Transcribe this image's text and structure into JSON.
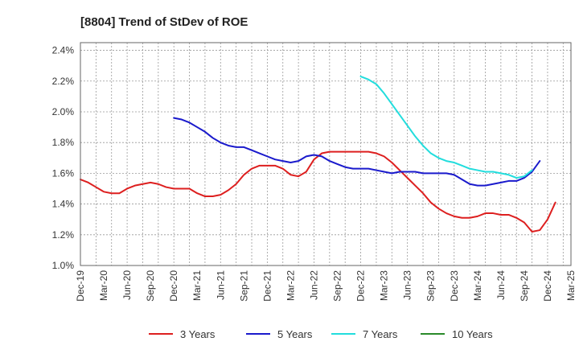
{
  "chart_data": {
    "type": "line",
    "title": "[8804]  Trend of StDev of ROE",
    "xlabel": "",
    "ylabel": "",
    "x_ticks": [
      "Dec-19",
      "Mar-20",
      "Jun-20",
      "Sep-20",
      "Dec-20",
      "Mar-21",
      "Jun-21",
      "Sep-21",
      "Dec-21",
      "Mar-22",
      "Jun-22",
      "Sep-22",
      "Dec-22",
      "Mar-23",
      "Jun-23",
      "Sep-23",
      "Dec-23",
      "Mar-24",
      "Jun-24",
      "Sep-24",
      "Dec-24",
      "Mar-25"
    ],
    "y_ticks": [
      "1.0%",
      "1.2%",
      "1.4%",
      "1.6%",
      "1.8%",
      "2.0%",
      "2.2%",
      "2.4%"
    ],
    "ylim": [
      1.0,
      2.45
    ],
    "grid": true,
    "legend_position": "bottom",
    "series": [
      {
        "name": "3 Years",
        "color": "#dd1f1f",
        "start": "Dec-19",
        "values": [
          1.56,
          1.54,
          1.51,
          1.48,
          1.47,
          1.47,
          1.5,
          1.52,
          1.53,
          1.54,
          1.53,
          1.51,
          1.5,
          1.5,
          1.5,
          1.47,
          1.45,
          1.45,
          1.46,
          1.49,
          1.53,
          1.59,
          1.63,
          1.65,
          1.65,
          1.65,
          1.63,
          1.59,
          1.58,
          1.61,
          1.69,
          1.73,
          1.74,
          1.74,
          1.74,
          1.74,
          1.74,
          1.74,
          1.73,
          1.71,
          1.67,
          1.62,
          1.57,
          1.52,
          1.47,
          1.41,
          1.37,
          1.34,
          1.32,
          1.31,
          1.31,
          1.32,
          1.34,
          1.34,
          1.33,
          1.33,
          1.31,
          1.28,
          1.22,
          1.23,
          1.3,
          1.41
        ]
      },
      {
        "name": "5 Years",
        "color": "#1a1acc",
        "start": "Dec-20",
        "values": [
          1.96,
          1.95,
          1.93,
          1.9,
          1.87,
          1.83,
          1.8,
          1.78,
          1.77,
          1.77,
          1.75,
          1.73,
          1.71,
          1.69,
          1.68,
          1.67,
          1.68,
          1.71,
          1.72,
          1.71,
          1.68,
          1.66,
          1.64,
          1.63,
          1.63,
          1.63,
          1.62,
          1.61,
          1.6,
          1.61,
          1.61,
          1.61,
          1.6,
          1.6,
          1.6,
          1.6,
          1.59,
          1.56,
          1.53,
          1.52,
          1.52,
          1.53,
          1.54,
          1.55,
          1.55,
          1.57,
          1.61,
          1.68
        ]
      },
      {
        "name": "7 Years",
        "color": "#22dddd",
        "start": "Dec-22",
        "values": [
          2.23,
          2.21,
          2.18,
          2.12,
          2.05,
          1.98,
          1.91,
          1.84,
          1.78,
          1.73,
          1.7,
          1.68,
          1.67,
          1.65,
          1.63,
          1.62,
          1.61,
          1.61,
          1.6,
          1.59,
          1.57,
          1.58,
          1.62
        ]
      },
      {
        "name": "10 Years",
        "color": "#2a8a2a",
        "start": "",
        "values": []
      }
    ]
  }
}
